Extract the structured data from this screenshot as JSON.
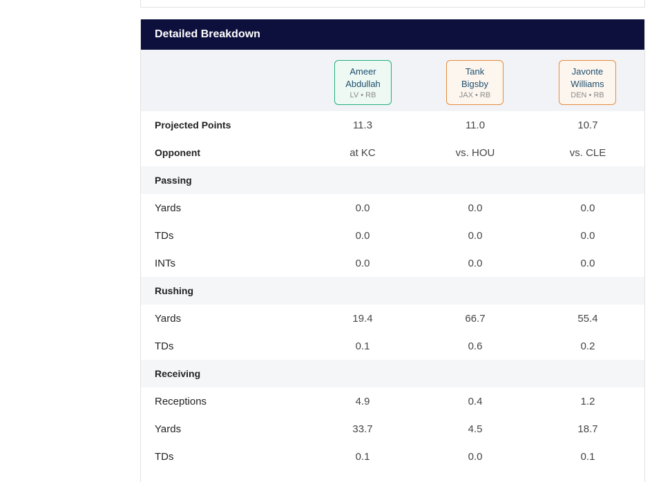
{
  "header": {
    "title": "Detailed Breakdown"
  },
  "players": [
    {
      "first": "Ameer",
      "last": "Abdullah",
      "meta": "LV • RB",
      "accent": "#1fb07a"
    },
    {
      "first": "Tank",
      "last": "Bigsby",
      "meta": "JAX • RB",
      "accent": "#e58a3b"
    },
    {
      "first": "Javonte",
      "last": "Williams",
      "meta": "DEN • RB",
      "accent": "#e58a3b"
    }
  ],
  "rows": {
    "projected": {
      "label": "Projected Points",
      "values": [
        "11.3",
        "11.0",
        "10.7"
      ]
    },
    "opponent": {
      "label": "Opponent",
      "values": [
        "at KC",
        "vs. HOU",
        "vs. CLE"
      ]
    },
    "passing": {
      "label": "Passing"
    },
    "pass_yards": {
      "label": "Yards",
      "values": [
        "0.0",
        "0.0",
        "0.0"
      ]
    },
    "pass_tds": {
      "label": "TDs",
      "values": [
        "0.0",
        "0.0",
        "0.0"
      ]
    },
    "pass_ints": {
      "label": "INTs",
      "values": [
        "0.0",
        "0.0",
        "0.0"
      ]
    },
    "rushing": {
      "label": "Rushing"
    },
    "rush_yards": {
      "label": "Yards",
      "values": [
        "19.4",
        "66.7",
        "55.4"
      ]
    },
    "rush_tds": {
      "label": "TDs",
      "values": [
        "0.1",
        "0.6",
        "0.2"
      ]
    },
    "receiving": {
      "label": "Receiving"
    },
    "receptions": {
      "label": "Receptions",
      "values": [
        "4.9",
        "0.4",
        "1.2"
      ]
    },
    "rec_yards": {
      "label": "Yards",
      "values": [
        "33.7",
        "4.5",
        "18.7"
      ]
    },
    "rec_tds": {
      "label": "TDs",
      "values": [
        "0.1",
        "0.0",
        "0.1"
      ]
    }
  }
}
